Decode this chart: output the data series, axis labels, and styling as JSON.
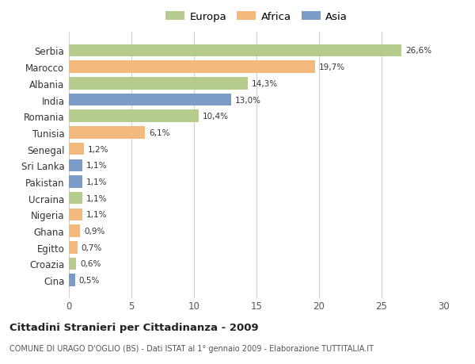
{
  "categories": [
    "Serbia",
    "Marocco",
    "Albania",
    "India",
    "Romania",
    "Tunisia",
    "Senegal",
    "Sri Lanka",
    "Pakistan",
    "Ucraina",
    "Nigeria",
    "Ghana",
    "Egitto",
    "Croazia",
    "Cina"
  ],
  "values": [
    26.6,
    19.7,
    14.3,
    13.0,
    10.4,
    6.1,
    1.2,
    1.1,
    1.1,
    1.1,
    1.1,
    0.9,
    0.7,
    0.6,
    0.5
  ],
  "labels": [
    "26,6%",
    "19,7%",
    "14,3%",
    "13,0%",
    "10,4%",
    "6,1%",
    "1,2%",
    "1,1%",
    "1,1%",
    "1,1%",
    "1,1%",
    "0,9%",
    "0,7%",
    "0,6%",
    "0,5%"
  ],
  "continent": [
    "Europa",
    "Africa",
    "Europa",
    "Asia",
    "Europa",
    "Africa",
    "Africa",
    "Asia",
    "Asia",
    "Europa",
    "Africa",
    "Africa",
    "Africa",
    "Europa",
    "Asia"
  ],
  "colors": {
    "Europa": "#b5cc8e",
    "Africa": "#f4b97c",
    "Asia": "#7a9cc6"
  },
  "legend_labels": [
    "Europa",
    "Africa",
    "Asia"
  ],
  "legend_colors": [
    "#b5cc8e",
    "#f4b97c",
    "#7a9cc6"
  ],
  "xlim": [
    0,
    30
  ],
  "xticks": [
    0,
    5,
    10,
    15,
    20,
    25,
    30
  ],
  "title": "Cittadini Stranieri per Cittadinanza - 2009",
  "subtitle": "COMUNE DI URAGO D'OGLIO (BS) - Dati ISTAT al 1° gennaio 2009 - Elaborazione TUTTITALIA.IT",
  "background_color": "#ffffff",
  "grid_color": "#d0d0d0",
  "bar_height": 0.75
}
